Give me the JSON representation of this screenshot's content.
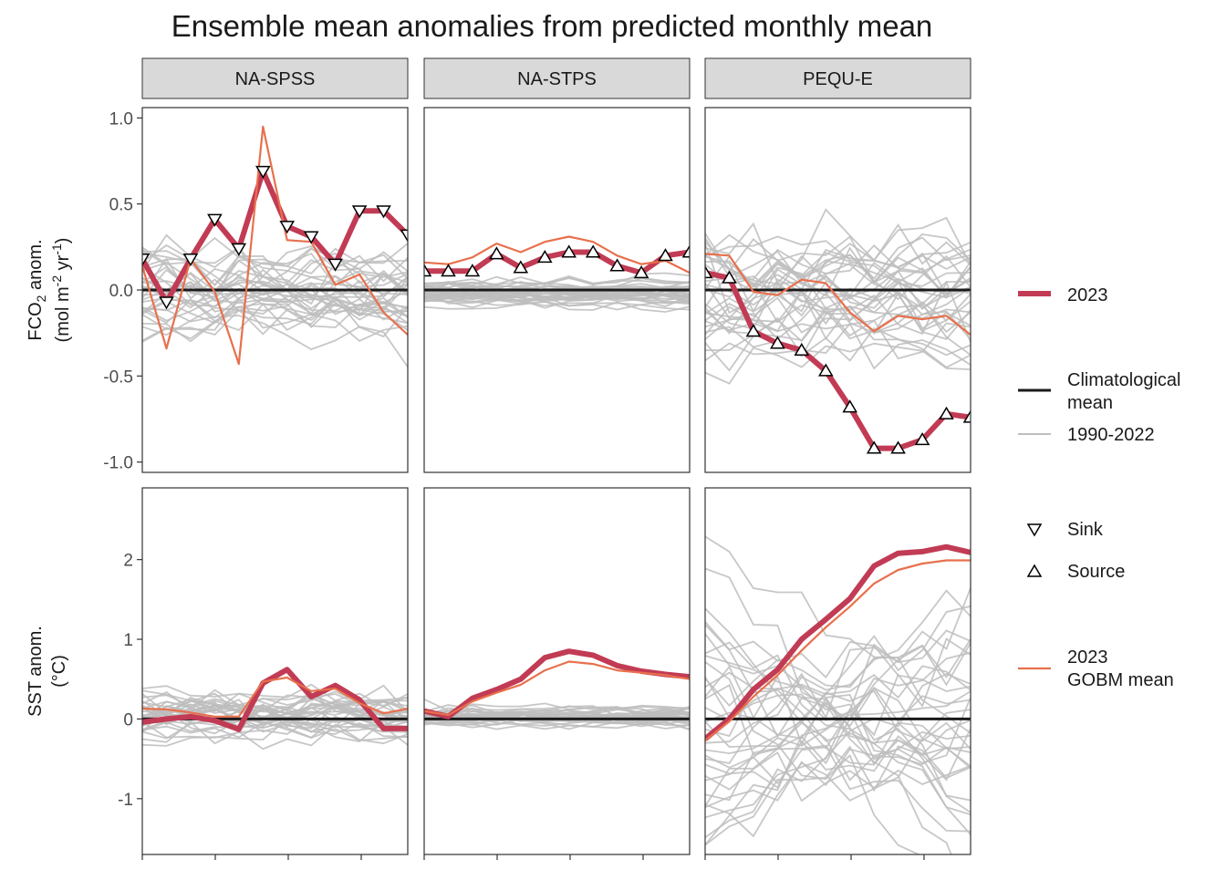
{
  "chart_data": {
    "type": "line",
    "title": "Ensemble mean anomalies from predicted monthly mean",
    "facet_columns": [
      "NA-SPSS",
      "NA-STPS",
      "PEQU-E"
    ],
    "x": [
      1,
      2,
      3,
      4,
      5,
      6,
      7,
      8,
      9,
      10,
      11,
      12
    ],
    "rows": [
      {
        "key": "fco2",
        "ylabel_line1_main": "FCO",
        "ylabel_line1_sub": "2",
        "ylabel_line1_tail": " anom.",
        "ylabel_line2_a": "(mol m",
        "ylabel_line2_sup1": "-2",
        "ylabel_line2_b": " yr",
        "ylabel_line2_sup2": "-1",
        "ylabel_line2_c": ")",
        "ylim": [
          -1.06,
          1.06
        ],
        "ticks": [
          1.0,
          0.5,
          0.0,
          -0.5,
          -1.0
        ],
        "tick_labels": [
          "1.0",
          "0.5",
          "0.0",
          "-0.5",
          "-1.0"
        ]
      },
      {
        "key": "sst",
        "ylabel_line1": "SST anom.",
        "ylabel_line2": "(°C)",
        "ylim": [
          -1.7,
          2.9
        ],
        "ticks": [
          2,
          1,
          0,
          -1
        ],
        "tick_labels": [
          "2",
          "1",
          "0",
          "-1"
        ]
      }
    ],
    "panels": {
      "fco2": [
        {
          "name": "NA-SPSS",
          "series_2023": [
            0.18,
            -0.07,
            0.18,
            0.41,
            0.24,
            0.69,
            0.37,
            0.31,
            0.15,
            0.46,
            0.46,
            0.32
          ],
          "gobm_mean": [
            0.14,
            -0.34,
            0.18,
            -0.01,
            -0.43,
            0.95,
            0.29,
            0.28,
            0.03,
            0.09,
            -0.13,
            -0.26
          ],
          "markers": [
            "sink",
            "sink",
            "sink",
            "sink",
            "sink",
            "sink",
            "sink",
            "sink",
            "sink",
            "sink",
            "sink",
            "sink"
          ]
        },
        {
          "name": "NA-STPS",
          "series_2023": [
            0.11,
            0.11,
            0.11,
            0.21,
            0.13,
            0.19,
            0.22,
            0.22,
            0.14,
            0.1,
            0.2,
            0.22
          ],
          "gobm_mean": [
            0.16,
            0.15,
            0.19,
            0.27,
            0.22,
            0.28,
            0.31,
            0.28,
            0.2,
            0.15,
            0.17,
            0.1
          ],
          "markers": [
            "source",
            "source",
            "source",
            "source",
            "source",
            "source",
            "source",
            "source",
            "source",
            "source",
            "source",
            "source"
          ]
        },
        {
          "name": "PEQU-E",
          "series_2023": [
            0.1,
            0.07,
            -0.24,
            -0.31,
            -0.35,
            -0.47,
            -0.68,
            -0.92,
            -0.92,
            -0.87,
            -0.72,
            -0.74
          ],
          "gobm_mean": [
            0.21,
            0.2,
            -0.01,
            -0.03,
            0.06,
            0.04,
            -0.13,
            -0.24,
            -0.15,
            -0.17,
            -0.15,
            -0.26
          ],
          "markers": [
            "source",
            "source",
            "source",
            "source",
            "source",
            "source",
            "source",
            "source",
            "source",
            "source",
            "source",
            "source"
          ]
        }
      ],
      "sst": [
        {
          "name": "NA-SPSS",
          "series_2023": [
            -0.04,
            0.0,
            0.03,
            -0.02,
            -0.13,
            0.45,
            0.62,
            0.28,
            0.42,
            0.24,
            -0.12,
            -0.12
          ],
          "gobm_mean": [
            0.13,
            0.12,
            0.08,
            0.03,
            0.03,
            0.47,
            0.52,
            0.35,
            0.38,
            0.2,
            0.07,
            0.13
          ]
        },
        {
          "name": "NA-STPS",
          "series_2023": [
            0.1,
            0.03,
            0.26,
            0.37,
            0.5,
            0.77,
            0.85,
            0.8,
            0.67,
            0.6,
            0.56,
            0.53
          ],
          "gobm_mean": [
            0.1,
            0.05,
            0.22,
            0.33,
            0.43,
            0.61,
            0.72,
            0.69,
            0.61,
            0.58,
            0.55,
            0.5
          ]
        },
        {
          "name": "PEQU-E",
          "series_2023": [
            -0.25,
            0.0,
            0.37,
            0.62,
            1.0,
            1.25,
            1.51,
            1.92,
            2.08,
            2.1,
            2.16,
            2.09
          ],
          "gobm_mean": [
            -0.27,
            -0.03,
            0.28,
            0.55,
            0.86,
            1.15,
            1.41,
            1.7,
            1.87,
            1.95,
            1.99,
            1.99
          ]
        }
      ]
    },
    "climatology": 0,
    "background_years": "1990-2022",
    "legend": {
      "y2023": "2023",
      "clim_line1": "Climatological",
      "clim_line2": "mean",
      "bg": "1990-2022",
      "sink": "Sink",
      "source": "Source",
      "gobm_line1": "2023",
      "gobm_line2": "GOBM mean"
    },
    "x_ticks_count": 4,
    "colors": {
      "series_2023": "#c23b54",
      "gobm_mean": "#e8704c",
      "climatology": "#1a1a1a",
      "background": "#bdbdbd",
      "strip_fill": "#d9d9d9"
    },
    "grid": false,
    "legend_position": "right"
  }
}
